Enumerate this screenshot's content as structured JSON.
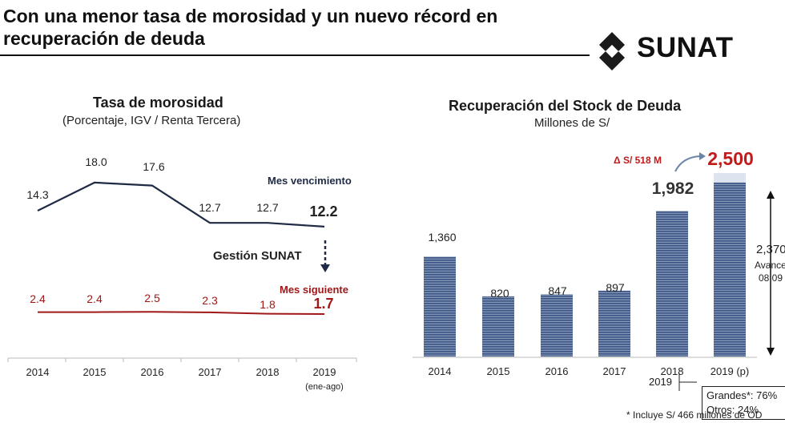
{
  "header": {
    "title_line1": "Con una menor tasa de morosidad y un nuevo récord en",
    "title_line2": "recuperación de deuda",
    "logo_text": "SUNAT",
    "logo_icon": "sunat-s-logo-icon"
  },
  "chart_data": [
    {
      "type": "line",
      "title": "Tasa de morosidad",
      "subtitle": "(Porcentaje, IGV / Renta Tercera)",
      "categories": [
        "2014",
        "2015",
        "2016",
        "2017",
        "2018",
        "2019"
      ],
      "category_sublabel": "(ene-ago)",
      "ylim": [
        0,
        20
      ],
      "series": [
        {
          "name": "Mes vencimiento",
          "values": [
            14.3,
            18.0,
            17.6,
            12.7,
            12.7,
            12.2
          ],
          "labels": [
            "14.3",
            "18.0",
            "17.6",
            "12.7",
            "12.7",
            "12.2"
          ],
          "color": "#1f2a44"
        },
        {
          "name": "Mes siguiente",
          "values": [
            2.4,
            2.4,
            2.5,
            2.3,
            1.8,
            1.7
          ],
          "labels": [
            "2.4",
            "2.4",
            "2.5",
            "2.3",
            "1.8",
            "1.7"
          ],
          "color": "#a01818"
        }
      ],
      "annotation": "Gestión SUNAT"
    },
    {
      "type": "bar",
      "title": "Recuperación del Stock de Deuda",
      "subtitle": "Millones de S/",
      "categories": [
        "2014",
        "2015",
        "2016",
        "2017",
        "2018",
        "2019 (p)"
      ],
      "values": [
        1360,
        820,
        847,
        897,
        1982,
        2500
      ],
      "labels": [
        "1,360",
        "820",
        "847",
        "897",
        "1,982",
        "2,500"
      ],
      "ylim": [
        0,
        2500
      ],
      "projected_advance_value": 2370,
      "projected_advance_label": "2,370",
      "advance_text": "Avance",
      "advance_date": "08.09",
      "delta_label": "Δ S/ 518 M",
      "breakdown_year": "2019",
      "breakdown": [
        "Grandes*: 76%",
        "Otros: 24%"
      ],
      "footnote": "* Incluye S/ 466 millones de OD",
      "bar_color": "#4a6590",
      "highlight_color": "#c01a1a"
    }
  ]
}
